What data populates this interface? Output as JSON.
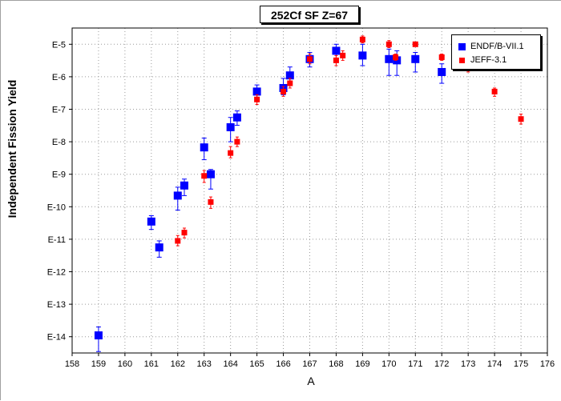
{
  "chart_data": {
    "type": "scatter",
    "title": "252Cf SF Z=67",
    "xlabel": "A",
    "ylabel": "Independent Fission Yield",
    "xlim": [
      158,
      176
    ],
    "ylim_exponent": [
      -14.5,
      -4.5
    ],
    "y_scale": "log",
    "x_ticks": [
      "158",
      "159",
      "160",
      "161",
      "162",
      "163",
      "164",
      "165",
      "166",
      "167",
      "168",
      "169",
      "170",
      "171",
      "172",
      "173",
      "174",
      "175",
      "176"
    ],
    "y_ticks": [
      {
        "label": "E-5",
        "exp": -5
      },
      {
        "label": "E-6",
        "exp": -6
      },
      {
        "label": "E-7",
        "exp": -7
      },
      {
        "label": "E-8",
        "exp": -8
      },
      {
        "label": "E-9",
        "exp": -9
      },
      {
        "label": "E-10",
        "exp": -10
      },
      {
        "label": "E-11",
        "exp": -11
      },
      {
        "label": "E-12",
        "exp": -12
      },
      {
        "label": "E-13",
        "exp": -13
      },
      {
        "label": "E-14",
        "exp": -14
      }
    ],
    "grid": true,
    "legend_position": "top-right",
    "series": [
      {
        "name": "ENDF/B-VII.1",
        "color": "#0000ff",
        "marker": "square-large",
        "points": [
          {
            "a": 159,
            "y": "1.1e-14",
            "lo": "3.5e-15",
            "hi": "2.0e-14"
          },
          {
            "a": 161,
            "y": "3.5e-11",
            "lo": "2.0e-11",
            "hi": "5.3e-11"
          },
          {
            "a": 161.3,
            "y": "5.6e-12",
            "lo": "2.8e-12",
            "hi": "8.9e-12"
          },
          {
            "a": 162,
            "y": "2.2e-10",
            "lo": "7.9e-11",
            "hi": "4.0e-10"
          },
          {
            "a": 162.25,
            "y": "4.5e-10",
            "lo": "2.2e-10",
            "hi": "7.1e-10"
          },
          {
            "a": 163,
            "y": "6.7e-09",
            "lo": "2.8e-09",
            "hi": "1.3e-08"
          },
          {
            "a": 163.25,
            "y": "1.0e-09",
            "lo": "3.5e-10",
            "hi": "1.4e-09"
          },
          {
            "a": 164,
            "y": "2.8e-08",
            "lo": "1.0e-08",
            "hi": "5.6e-08"
          },
          {
            "a": 164.25,
            "y": "5.6e-08",
            "lo": "3.2e-08",
            "hi": "8.9e-08"
          },
          {
            "a": 165,
            "y": "3.5e-07",
            "lo": "2.2e-07",
            "hi": "5.6e-07"
          },
          {
            "a": 166,
            "y": "4.5e-07",
            "lo": "2.8e-07",
            "hi": "8.9e-07"
          },
          {
            "a": 166.25,
            "y": "1.1e-06",
            "lo": "6.3e-07",
            "hi": "2.0e-06"
          },
          {
            "a": 167,
            "y": "3.5e-06",
            "lo": "2.0e-06",
            "hi": "5.6e-06"
          },
          {
            "a": 168,
            "y": "6.3e-06",
            "lo": "3.2e-06",
            "hi": "1.0e-05"
          },
          {
            "a": 169,
            "y": "4.5e-06",
            "lo": "2.2e-06",
            "hi": "1.0e-05"
          },
          {
            "a": 170,
            "y": "3.5e-06",
            "lo": "1.1e-06",
            "hi": "7.1e-06"
          },
          {
            "a": 170.3,
            "y": "3.2e-06",
            "lo": "1.1e-06",
            "hi": "6.3e-06"
          },
          {
            "a": 171,
            "y": "3.5e-06",
            "lo": "1.4e-06",
            "hi": "5.6e-06"
          },
          {
            "a": 172,
            "y": "1.4e-06",
            "lo": "6.3e-07",
            "hi": "2.5e-06"
          }
        ]
      },
      {
        "name": "JEFF-3.1",
        "color": "#ff0000",
        "marker": "square-small",
        "points": [
          {
            "a": 162,
            "y": "8.9e-12",
            "lo": "6.3e-12",
            "hi": "1.3e-11"
          },
          {
            "a": 162.25,
            "y": "1.6e-11",
            "lo": "1.1e-11",
            "hi": "2.2e-11"
          },
          {
            "a": 163,
            "y": "8.9e-10",
            "lo": "5.6e-10",
            "hi": "1.3e-09"
          },
          {
            "a": 163.25,
            "y": "1.4e-10",
            "lo": "8.9e-11",
            "hi": "2.0e-10"
          },
          {
            "a": 164,
            "y": "4.5e-09",
            "lo": "3.2e-09",
            "hi": "7.1e-09"
          },
          {
            "a": 164.25,
            "y": "1.0e-08",
            "lo": "7.1e-09",
            "hi": "1.4e-08"
          },
          {
            "a": 165,
            "y": "2.0e-07",
            "lo": "1.4e-07",
            "hi": "2.8e-07"
          },
          {
            "a": 166,
            "y": "3.5e-07",
            "lo": "2.5e-07",
            "hi": "5.0e-07"
          },
          {
            "a": 166.25,
            "y": "6.3e-07",
            "lo": "4.5e-07",
            "hi": "8.9e-07"
          },
          {
            "a": 167,
            "y": "3.5e-06",
            "lo": "2.5e-06",
            "hi": "5.0e-06"
          },
          {
            "a": 168,
            "y": "3.2e-06",
            "lo": "2.2e-06",
            "hi": "4.5e-06"
          },
          {
            "a": 168.25,
            "y": "4.5e-06",
            "lo": "3.2e-06",
            "hi": "6.3e-06"
          },
          {
            "a": 169,
            "y": "1.4e-05",
            "lo": "1.1e-05",
            "hi": "1.8e-05"
          },
          {
            "a": 170,
            "y": "1.0e-05",
            "lo": "7.9e-06",
            "hi": "1.3e-05"
          },
          {
            "a": 170.25,
            "y": "4.0e-06",
            "lo": "3.2e-06",
            "hi": "5.0e-06"
          },
          {
            "a": 171,
            "y": "1.0e-05",
            "lo": "8.9e-06",
            "hi": "1.1e-05"
          },
          {
            "a": 172,
            "y": "4.0e-06",
            "lo": "3.2e-06",
            "hi": "5.0e-06"
          },
          {
            "a": 173,
            "y": "1.8e-06",
            "lo": "1.4e-06",
            "hi": "2.2e-06"
          },
          {
            "a": 174,
            "y": "3.5e-07",
            "lo": "2.5e-07",
            "hi": "4.5e-07"
          },
          {
            "a": 175,
            "y": "5.0e-08",
            "lo": "3.5e-08",
            "hi": "7.1e-08"
          }
        ]
      }
    ]
  }
}
